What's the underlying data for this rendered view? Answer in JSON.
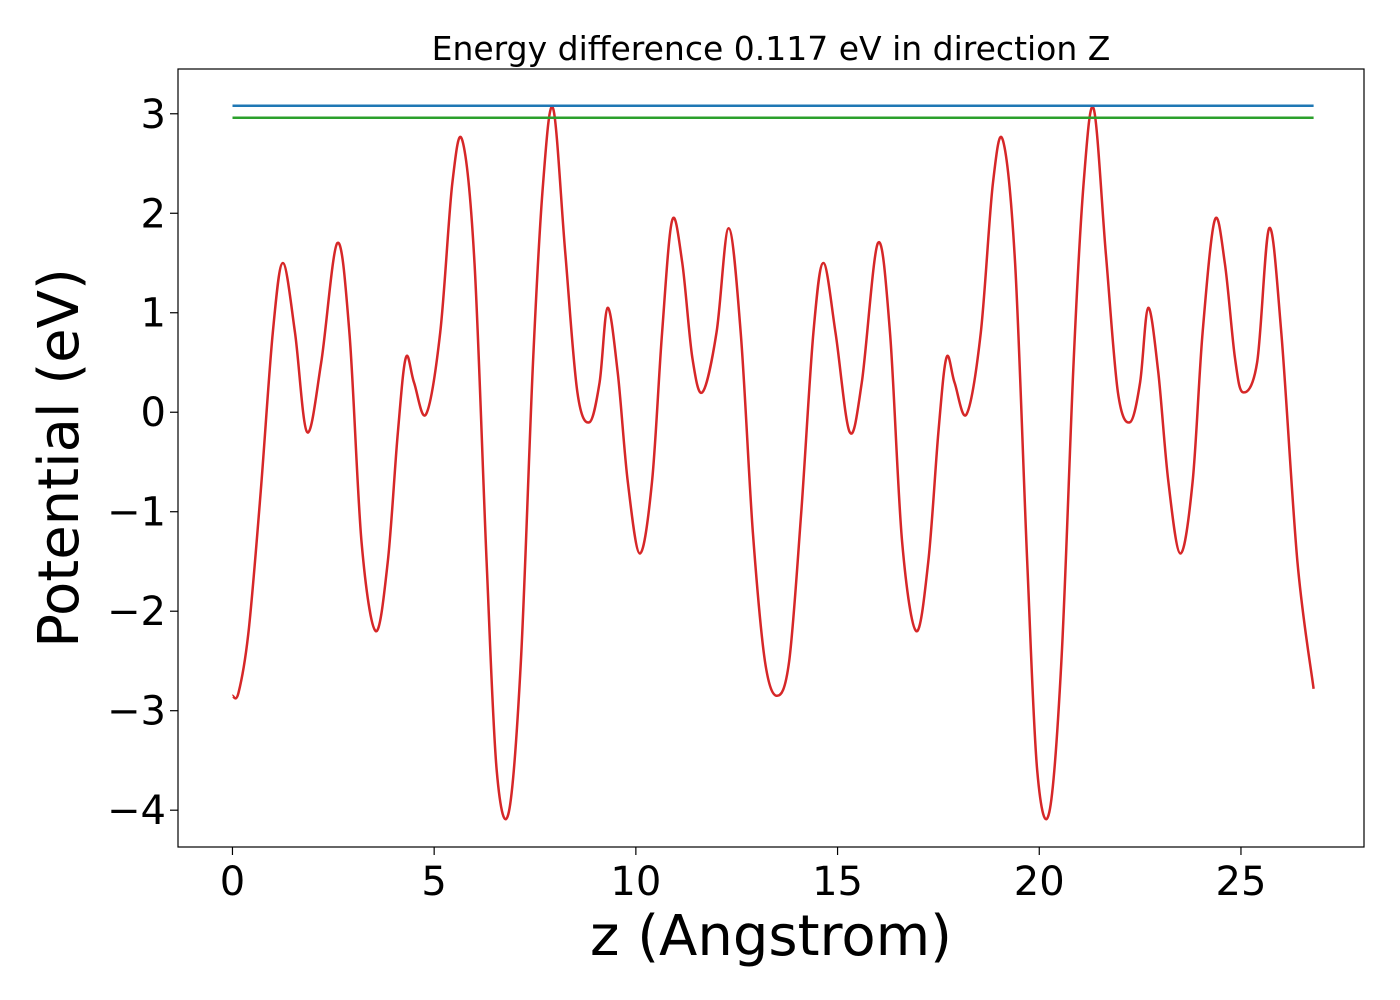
{
  "chart_data": {
    "type": "line",
    "title": "Energy difference 0.117 eV in direction Z",
    "xlabel": "z (Angstrom)",
    "ylabel": "Potential (eV)",
    "xlim": [
      -1.35,
      28.05
    ],
    "ylim": [
      -4.37,
      3.45
    ],
    "xticks": [
      0,
      5,
      10,
      15,
      20,
      25
    ],
    "xtick_labels": [
      "0",
      "5",
      "10",
      "15",
      "20",
      "25"
    ],
    "yticks": [
      -4,
      -3,
      -2,
      -1,
      0,
      1,
      2,
      3
    ],
    "ytick_labels": [
      "−4",
      "−3",
      "−2",
      "−1",
      "0",
      "1",
      "2",
      "3"
    ],
    "grid": false,
    "series": [
      {
        "color": "#d62728",
        "x": [
          0.0,
          0.15,
          0.4,
          0.7,
          1.0,
          1.25,
          1.55,
          1.85,
          2.2,
          2.6,
          2.9,
          3.2,
          3.55,
          3.85,
          4.1,
          4.3,
          4.5,
          4.8,
          5.15,
          5.45,
          5.7,
          6.0,
          6.3,
          6.55,
          6.85,
          7.15,
          7.45,
          7.7,
          7.95,
          8.25,
          8.55,
          8.85,
          9.1,
          9.3,
          9.55,
          9.8,
          10.1,
          10.4,
          10.65,
          10.9,
          11.15,
          11.4,
          11.65,
          12.0,
          12.3,
          12.6,
          12.9,
          13.2,
          13.5,
          13.8,
          14.1,
          14.4,
          14.65,
          14.95,
          15.3,
          15.6,
          16.0,
          16.3,
          16.6,
          16.95,
          17.25,
          17.5,
          17.7,
          17.9,
          18.2,
          18.55,
          18.85,
          19.1,
          19.4,
          19.7,
          19.95,
          20.25,
          20.55,
          20.85,
          21.1,
          21.35,
          21.65,
          21.95,
          22.25,
          22.5,
          22.7,
          22.95,
          23.2,
          23.5,
          23.8,
          24.05,
          24.35,
          24.6,
          24.85,
          25.05,
          25.4,
          25.7,
          26.0,
          26.4,
          26.8
        ],
        "values": [
          -2.85,
          -2.82,
          -2.2,
          -0.8,
          0.8,
          1.5,
          0.8,
          -0.2,
          0.5,
          1.7,
          0.8,
          -1.3,
          -2.2,
          -1.5,
          -0.2,
          0.55,
          0.3,
          -0.02,
          0.8,
          2.3,
          2.73,
          1.5,
          -1.5,
          -3.6,
          -4.02,
          -2.5,
          0.5,
          2.3,
          3.05,
          1.6,
          0.2,
          -0.1,
          0.3,
          1.05,
          0.4,
          -0.7,
          -1.42,
          -0.7,
          0.8,
          1.93,
          1.5,
          0.55,
          0.2,
          0.8,
          1.85,
          0.8,
          -1.2,
          -2.5,
          -2.85,
          -2.5,
          -1.0,
          0.8,
          1.5,
          0.8,
          -0.2,
          0.3,
          1.7,
          0.8,
          -1.3,
          -2.2,
          -1.5,
          -0.2,
          0.55,
          0.3,
          -0.02,
          0.8,
          2.3,
          2.73,
          1.5,
          -1.5,
          -3.6,
          -4.02,
          -2.5,
          0.5,
          2.3,
          3.05,
          1.6,
          0.2,
          -0.1,
          0.3,
          1.05,
          0.4,
          -0.7,
          -1.42,
          -0.7,
          0.8,
          1.93,
          1.5,
          0.55,
          0.2,
          0.5,
          1.85,
          0.8,
          -1.5,
          -2.78
        ]
      },
      {
        "color": "#1f77b4",
        "x": [
          0.0,
          26.8
        ],
        "values": [
          3.08,
          3.08
        ]
      },
      {
        "color": "#2ca02c",
        "x": [
          0.0,
          26.8
        ],
        "values": [
          2.96,
          2.96
        ]
      }
    ]
  }
}
